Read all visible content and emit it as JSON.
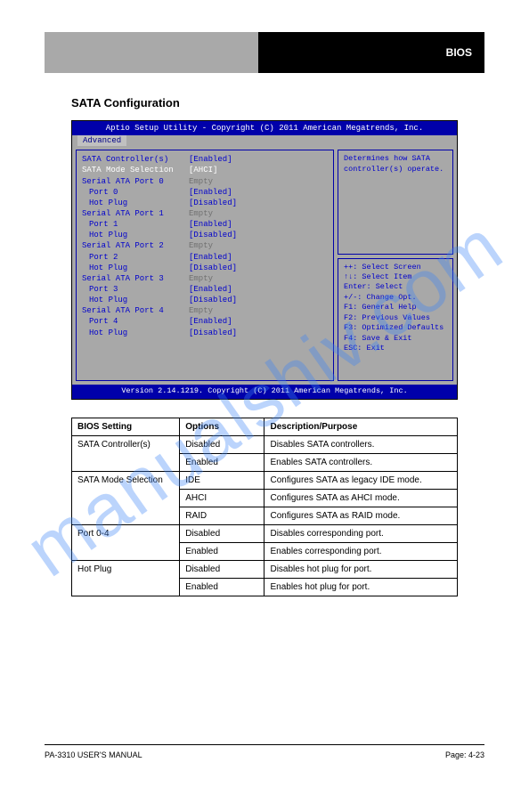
{
  "header": {
    "right_label": "BIOS"
  },
  "watermark": "manualshiv.com",
  "section_title": "SATA Configuration",
  "bios": {
    "title": "Aptio Setup Utility - Copyright (C) 2011 American Megatrends, Inc.",
    "tab": "Advanced",
    "rows": [
      {
        "label": "SATA Controller(s)",
        "value": "[Enabled]",
        "lcls": "",
        "vcls": ""
      },
      {
        "label": "SATA Mode Selection",
        "value": "[AHCI]",
        "lcls": "white",
        "vcls": "white"
      },
      {
        "label": "",
        "value": "",
        "lcls": "",
        "vcls": ""
      },
      {
        "label": "Serial ATA Port 0",
        "value": "Empty",
        "lcls": "",
        "vcls": "gray"
      },
      {
        "label": "Port 0",
        "value": "[Enabled]",
        "lcls": "indent",
        "vcls": ""
      },
      {
        "label": "Hot Plug",
        "value": "[Disabled]",
        "lcls": "indent",
        "vcls": ""
      },
      {
        "label": "Serial ATA Port 1",
        "value": "Empty",
        "lcls": "",
        "vcls": "gray"
      },
      {
        "label": "Port 1",
        "value": "[Enabled]",
        "lcls": "indent",
        "vcls": ""
      },
      {
        "label": "Hot Plug",
        "value": "[Disabled]",
        "lcls": "indent",
        "vcls": ""
      },
      {
        "label": "Serial ATA Port 2",
        "value": "Empty",
        "lcls": "",
        "vcls": "gray"
      },
      {
        "label": "Port 2",
        "value": "[Enabled]",
        "lcls": "indent",
        "vcls": ""
      },
      {
        "label": "Hot Plug",
        "value": "[Disabled]",
        "lcls": "indent",
        "vcls": ""
      },
      {
        "label": "Serial ATA Port 3",
        "value": "Empty",
        "lcls": "",
        "vcls": "gray"
      },
      {
        "label": "Port 3",
        "value": "[Enabled]",
        "lcls": "indent",
        "vcls": ""
      },
      {
        "label": "Hot Plug",
        "value": "[Disabled]",
        "lcls": "indent",
        "vcls": ""
      },
      {
        "label": "Serial ATA Port 4",
        "value": "Empty",
        "lcls": "",
        "vcls": "gray"
      },
      {
        "label": "Port 4",
        "value": "[Enabled]",
        "lcls": "indent",
        "vcls": ""
      },
      {
        "label": "Hot Plug",
        "value": "[Disabled]",
        "lcls": "indent",
        "vcls": ""
      }
    ],
    "help_top": "Determines how SATA controller(s) operate.",
    "help_keys": [
      "++: Select Screen",
      "↑↓: Select Item",
      "Enter: Select",
      "+/-: Change Opt.",
      "F1: General Help",
      "F2: Previous Values",
      "F3: Optimized Defaults",
      "F4: Save & Exit",
      "ESC: Exit"
    ],
    "footer": "Version 2.14.1219. Copyright (C) 2011 American Megatrends, Inc."
  },
  "table": {
    "headers": [
      "BIOS Setting",
      "Options",
      "Description/Purpose"
    ],
    "groups": [
      {
        "span": "SATA Controller(s)",
        "rows": [
          [
            "",
            "Disabled",
            "Disables SATA controllers."
          ],
          [
            "",
            "Enabled",
            "Enables SATA controllers."
          ]
        ]
      },
      {
        "span": "SATA Mode Selection",
        "rows": [
          [
            "SATA Mode Selection",
            "IDE",
            "Configures SATA as legacy IDE mode."
          ],
          [
            "",
            "AHCI",
            "Configures SATA as AHCI mode."
          ],
          [
            "",
            "RAID",
            "Configures SATA as RAID mode."
          ]
        ]
      },
      {
        "span": "Port 0-4",
        "rows": [
          [
            "Port 0-4",
            "Disabled",
            "Disables corresponding port."
          ],
          [
            "",
            "Enabled",
            "Enables corresponding port."
          ]
        ]
      },
      {
        "span": "Hot Plug",
        "rows": [
          [
            "Hot Plug",
            "Disabled",
            "Disables hot plug for port."
          ],
          [
            "",
            "Enabled",
            "Enables hot plug for port."
          ]
        ]
      }
    ]
  },
  "footer": {
    "left": "PA-3310 USER'S MANUAL",
    "right": "Page: 4-23"
  }
}
